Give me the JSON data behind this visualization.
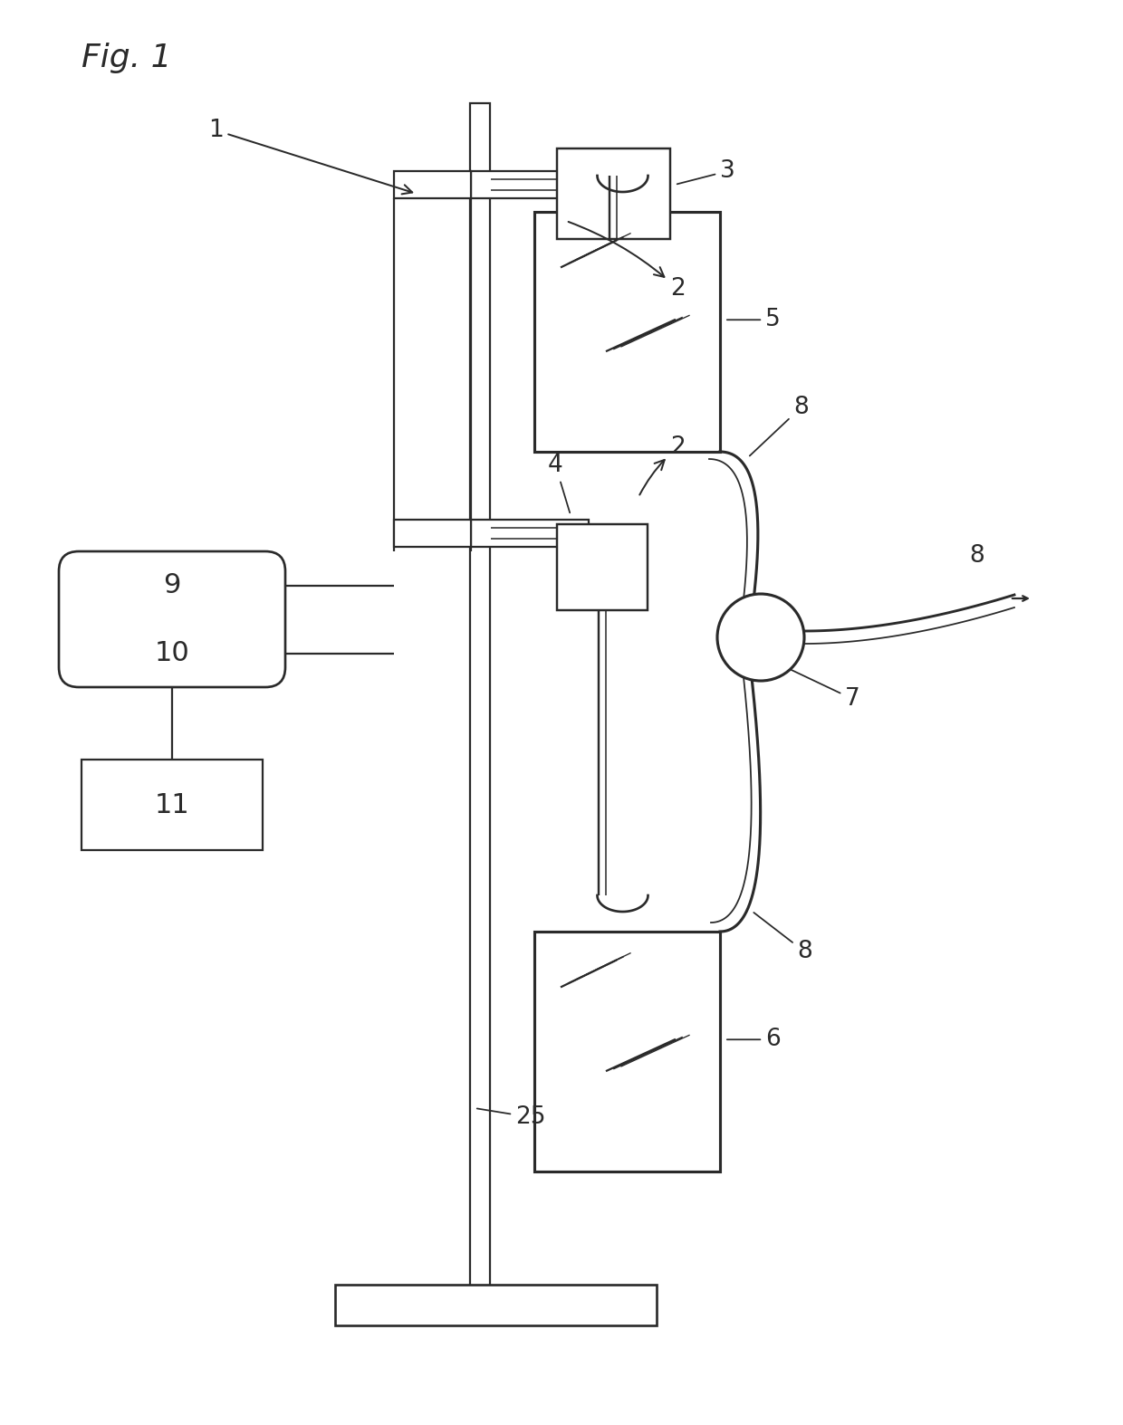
{
  "bg_color": "#ffffff",
  "lc": "#2a2a2a",
  "lw": 1.6,
  "fig_label": "Fig. 1"
}
